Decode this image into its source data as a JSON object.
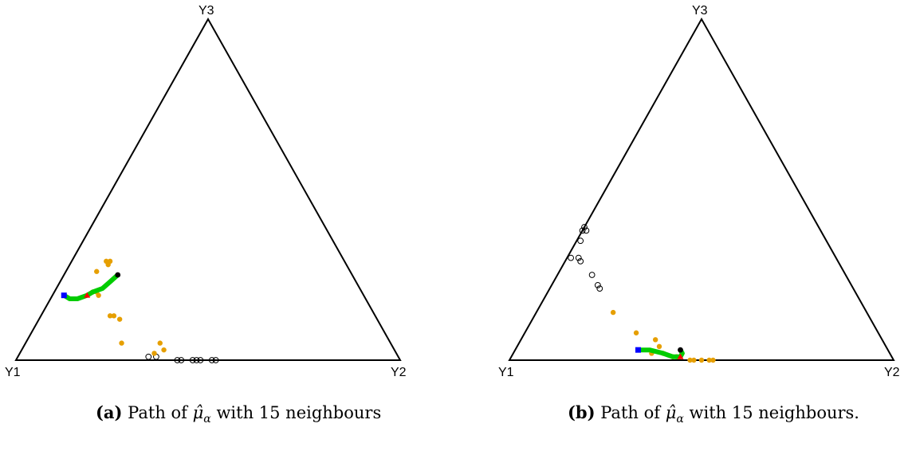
{
  "colors": {
    "orange": "#E69F00",
    "path": "#00CC00",
    "start": "#0000FF",
    "mid": "#FF0000",
    "end": "#000000",
    "open": "#000000"
  },
  "chart_data": [
    {
      "type": "scatter",
      "subtype": "ternary",
      "vertex_labels": [
        "Y1",
        "Y2",
        "Y3"
      ],
      "caption": {
        "tag": "(a)",
        "prefix": "Path of",
        "symbol": "μ̂",
        "subscript": "α",
        "suffix": "with 15 neighbours"
      },
      "filled_points": [
        [
          0.62,
          0.1,
          0.28
        ],
        [
          0.61,
          0.1,
          0.29
        ],
        [
          0.62,
          0.09,
          0.29
        ],
        [
          0.66,
          0.08,
          0.26
        ],
        [
          0.69,
          0.11,
          0.2
        ],
        [
          0.7,
          0.1,
          0.2
        ],
        [
          0.69,
          0.12,
          0.19
        ],
        [
          0.69,
          0.18,
          0.13
        ],
        [
          0.68,
          0.19,
          0.13
        ],
        [
          0.67,
          0.21,
          0.12
        ],
        [
          0.7,
          0.25,
          0.05
        ],
        [
          0.6,
          0.35,
          0.05
        ],
        [
          0.6,
          0.37,
          0.03
        ],
        [
          0.63,
          0.35,
          0.02
        ]
      ],
      "open_points": [
        [
          0.65,
          0.34,
          0.01
        ],
        [
          0.63,
          0.36,
          0.01
        ],
        [
          0.58,
          0.42,
          0.0
        ],
        [
          0.57,
          0.43,
          0.0
        ],
        [
          0.54,
          0.46,
          0.0
        ],
        [
          0.53,
          0.47,
          0.0
        ],
        [
          0.52,
          0.48,
          0.0
        ],
        [
          0.49,
          0.51,
          0.0
        ],
        [
          0.48,
          0.52,
          0.0
        ]
      ],
      "path": [
        [
          0.78,
          0.03,
          0.19
        ],
        [
          0.77,
          0.05,
          0.18
        ],
        [
          0.75,
          0.07,
          0.18
        ],
        [
          0.72,
          0.09,
          0.19
        ],
        [
          0.7,
          0.1,
          0.2
        ],
        [
          0.67,
          0.12,
          0.21
        ],
        [
          0.64,
          0.13,
          0.23
        ],
        [
          0.61,
          0.14,
          0.25
        ]
      ],
      "path_start": [
        0.78,
        0.03,
        0.19
      ],
      "path_mid": [
        0.72,
        0.09,
        0.19
      ],
      "path_end": [
        0.61,
        0.14,
        0.25
      ]
    },
    {
      "type": "scatter",
      "subtype": "ternary",
      "vertex_labels": [
        "Y1",
        "Y2",
        "Y3"
      ],
      "caption": {
        "tag": "(b)",
        "prefix": "Path of",
        "symbol": "μ̂",
        "subscript": "α",
        "suffix": "with 15 neighbours."
      },
      "filled_points": [
        [
          0.66,
          0.2,
          0.14
        ],
        [
          0.63,
          0.29,
          0.08
        ],
        [
          0.59,
          0.35,
          0.06
        ],
        [
          0.59,
          0.37,
          0.04
        ],
        [
          0.62,
          0.36,
          0.02
        ],
        [
          0.59,
          0.39,
          0.02
        ],
        [
          0.57,
          0.42,
          0.01
        ],
        [
          0.56,
          0.43,
          0.01
        ],
        [
          0.53,
          0.47,
          0.0
        ],
        [
          0.52,
          0.48,
          0.0
        ],
        [
          0.5,
          0.5,
          0.0
        ],
        [
          0.48,
          0.52,
          0.0
        ],
        [
          0.47,
          0.53,
          0.0
        ]
      ],
      "open_points": [
        [
          0.62,
          0.0,
          0.38
        ],
        [
          0.61,
          0.0,
          0.39
        ],
        [
          0.61,
          0.01,
          0.38
        ],
        [
          0.64,
          0.01,
          0.35
        ],
        [
          0.67,
          0.03,
          0.3
        ],
        [
          0.69,
          0.01,
          0.3
        ],
        [
          0.67,
          0.04,
          0.29
        ],
        [
          0.66,
          0.09,
          0.25
        ],
        [
          0.66,
          0.12,
          0.22
        ],
        [
          0.66,
          0.13,
          0.21
        ]
      ],
      "path": [
        [
          0.65,
          0.32,
          0.03
        ],
        [
          0.62,
          0.35,
          0.03
        ],
        [
          0.59,
          0.39,
          0.02
        ],
        [
          0.57,
          0.42,
          0.01
        ],
        [
          0.55,
          0.44,
          0.01
        ],
        [
          0.54,
          0.44,
          0.02
        ],
        [
          0.54,
          0.43,
          0.03
        ]
      ],
      "path_start": [
        0.65,
        0.32,
        0.03
      ],
      "path_mid": [
        0.55,
        0.44,
        0.01
      ],
      "path_end": [
        0.54,
        0.43,
        0.03
      ]
    }
  ]
}
